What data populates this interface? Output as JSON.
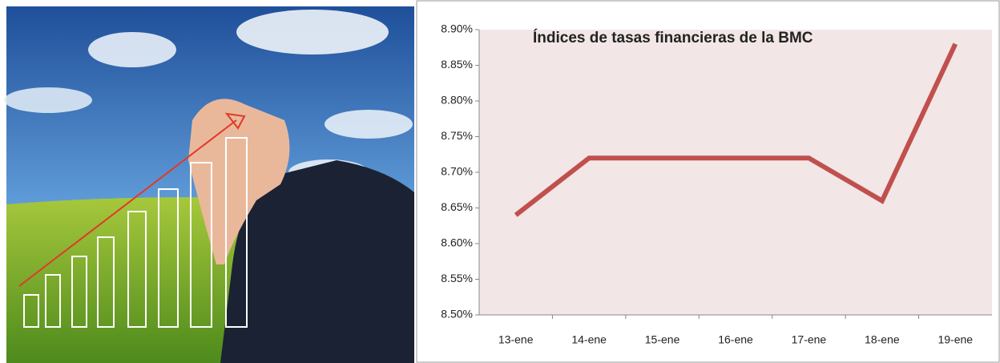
{
  "chart_data": {
    "type": "line",
    "title": "Índices de tasas financieras de la BMC",
    "categories": [
      "13-ene",
      "14-ene",
      "15-ene",
      "16-ene",
      "17-ene",
      "18-ene",
      "19-ene"
    ],
    "series": [
      {
        "name": "BMC",
        "color": "#c0504d",
        "values": [
          8.64,
          8.72,
          8.72,
          8.72,
          8.72,
          8.66,
          8.88
        ]
      }
    ],
    "ylim": [
      8.5,
      8.9
    ],
    "yticks": [
      {
        "value": 8.5,
        "label": "8.50%"
      },
      {
        "value": 8.55,
        "label": "8.55%"
      },
      {
        "value": 8.6,
        "label": "8.60%"
      },
      {
        "value": 8.65,
        "label": "8.65%"
      },
      {
        "value": 8.7,
        "label": "8.70%"
      },
      {
        "value": 8.75,
        "label": "8.75%"
      },
      {
        "value": 8.8,
        "label": "8.80%"
      },
      {
        "value": 8.85,
        "label": "8.85%"
      },
      {
        "value": 8.9,
        "label": "8.90%"
      }
    ],
    "grid": false,
    "plot_background": "#f2e6e6"
  }
}
